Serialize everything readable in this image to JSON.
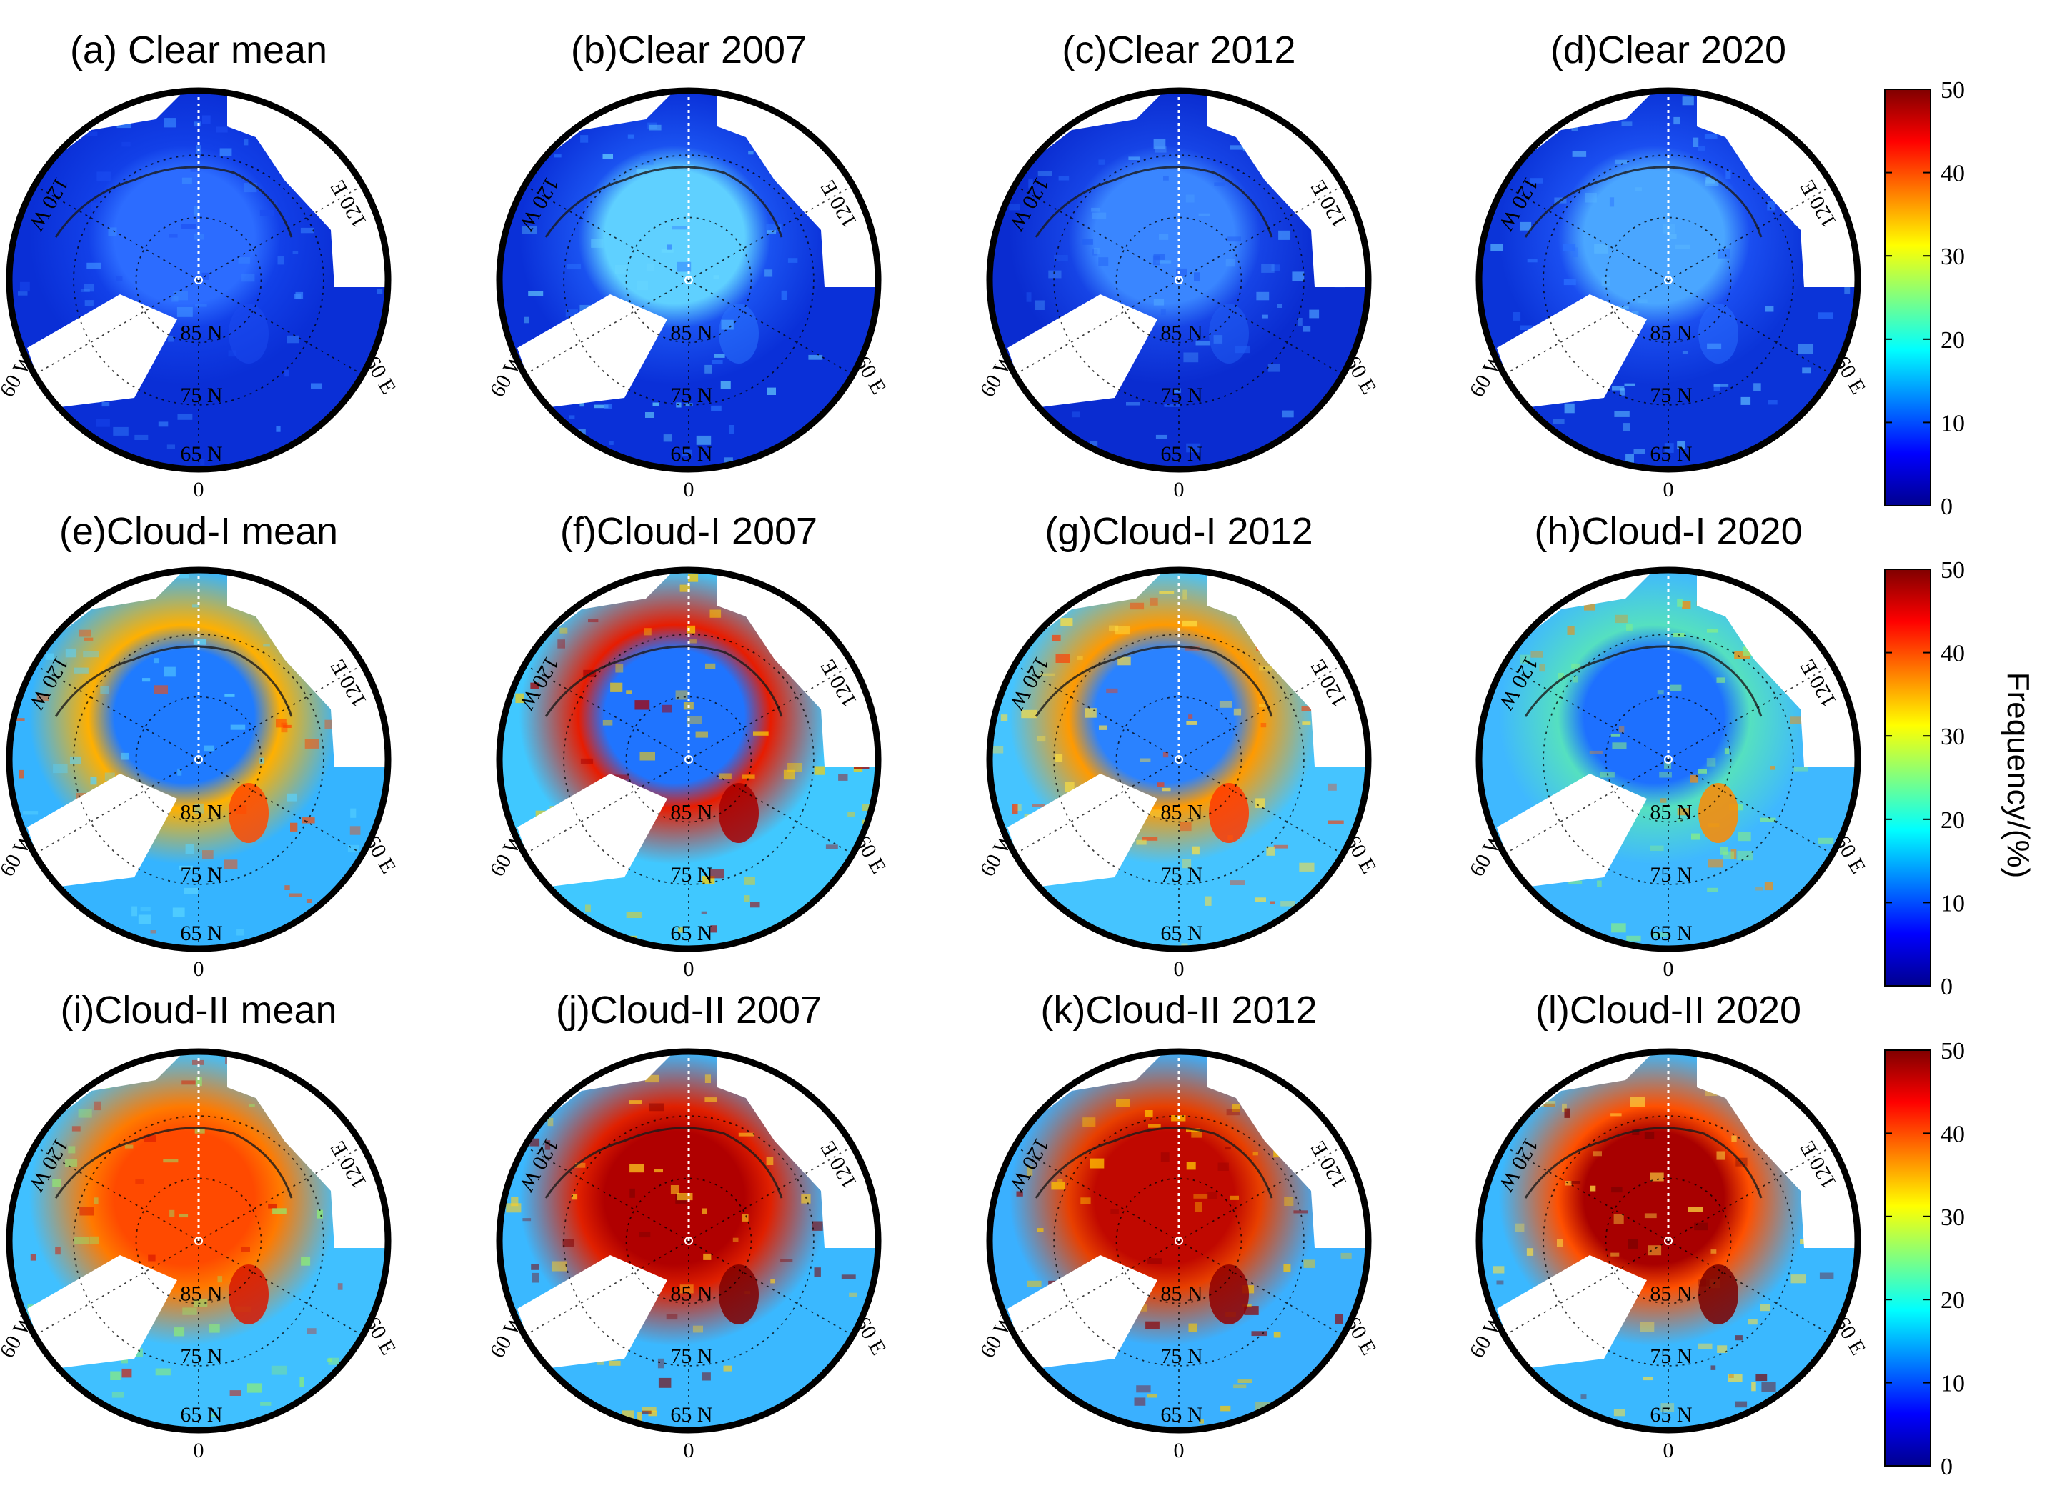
{
  "panels": [
    {
      "id": "a",
      "title": "(a) Clear mean",
      "field": "clear-mean"
    },
    {
      "id": "b",
      "title": "(b)Clear 2007",
      "field": "clear-2007"
    },
    {
      "id": "c",
      "title": "(c)Clear 2012",
      "field": "clear-2012"
    },
    {
      "id": "d",
      "title": "(d)Clear 2020",
      "field": "clear-2020"
    },
    {
      "id": "e",
      "title": "(e)Cloud-I mean",
      "field": "cloud1-mean"
    },
    {
      "id": "f",
      "title": "(f)Cloud-I 2007",
      "field": "cloud1-2007"
    },
    {
      "id": "g",
      "title": "(g)Cloud-I 2012",
      "field": "cloud1-2012"
    },
    {
      "id": "h",
      "title": "(h)Cloud-I 2020",
      "field": "cloud1-2020"
    },
    {
      "id": "i",
      "title": "(i)Cloud-II mean",
      "field": "cloud2-mean"
    },
    {
      "id": "j",
      "title": "(j)Cloud-II 2007",
      "field": "cloud2-2007"
    },
    {
      "id": "k",
      "title": "(k)Cloud-II 2012",
      "field": "cloud2-2012"
    },
    {
      "id": "l",
      "title": "(l)Cloud-II 2020",
      "field": "cloud2-2020"
    }
  ],
  "map_labels": {
    "lon_0": "0",
    "lon_60w": "60 W",
    "lon_60e": "60 E",
    "lon_120w": "120 W",
    "lon_120e": "120 E",
    "lat_65": "65 N",
    "lat_75": "75 N",
    "lat_85": "85 N"
  },
  "colorbar": {
    "label": "Frequency/(%)",
    "ticks": [
      "0",
      "10",
      "20",
      "30",
      "40",
      "50"
    ],
    "range": [
      0,
      50
    ],
    "colormap": [
      "#00008f",
      "#0000ff",
      "#0080ff",
      "#00ffff",
      "#80ff80",
      "#ffff00",
      "#ff8000",
      "#ff0000",
      "#800000"
    ]
  },
  "colors": {
    "land_no_data": "#ffffff",
    "coastline": "#1a1a1a",
    "rim": "#000000"
  }
}
